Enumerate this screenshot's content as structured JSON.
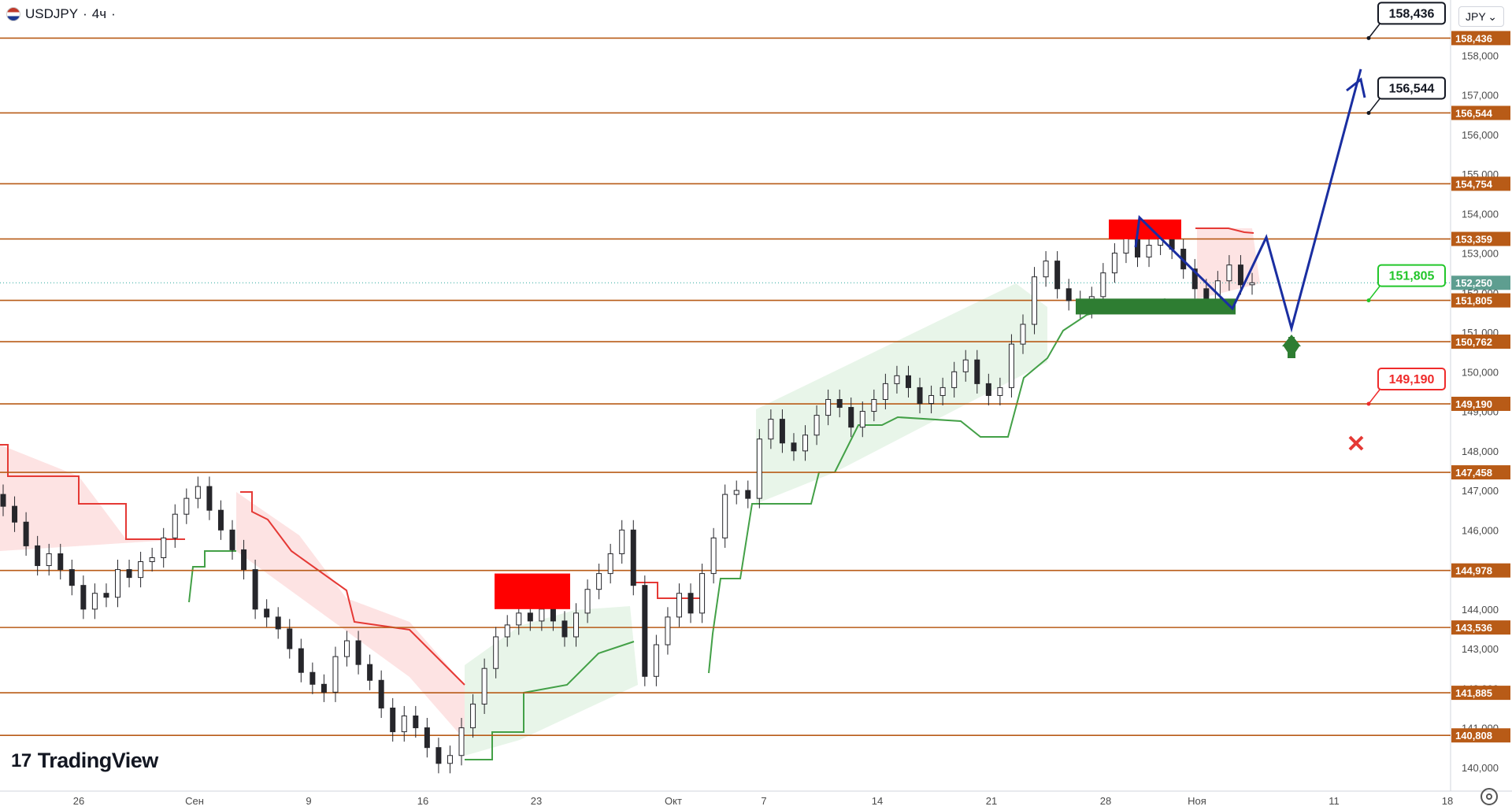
{
  "header": {
    "symbol": "USDJPY",
    "timeframe": "4ч",
    "currency": "JPY"
  },
  "branding": {
    "logo_text": "TradingView"
  },
  "colors": {
    "level_line": "#b85b17",
    "level_label_bg": "#b85b17",
    "bull": "#26a69a",
    "bear": "#ef5350",
    "candle": "#26262b",
    "path": "#1a2ea1",
    "up_zone": "#e8f5e9",
    "down_zone": "#fde3e3",
    "support_line": "#43a047",
    "resistance_line": "#e53935"
  },
  "chart_data": {
    "type": "candlestick",
    "title": "",
    "y_axis": {
      "min": 139.3,
      "max": 159.2,
      "ticks": [
        "158,000",
        "157,000",
        "156,000",
        "155,000",
        "154,000",
        "153,000",
        "152,000",
        "151,000",
        "150,000",
        "149,000",
        "148,000",
        "147,000",
        "146,000",
        "145,000",
        "144,000",
        "143,000",
        "142,000",
        "141,000",
        "140,000"
      ]
    },
    "x_axis": {
      "ticks": [
        "26",
        "Сен",
        "9",
        "16",
        "23",
        "Окт",
        "7",
        "14",
        "21",
        "28",
        "Ноя",
        "11",
        "18"
      ]
    },
    "current_price": {
      "value": 152.25,
      "label": "152,250"
    },
    "levels": [
      {
        "value": 158.436,
        "label": "158,436"
      },
      {
        "value": 156.544,
        "label": "156,544"
      },
      {
        "value": 154.754,
        "label": "154,754"
      },
      {
        "value": 153.359,
        "label": "153,359"
      },
      {
        "value": 151.805,
        "label": "151,805"
      },
      {
        "value": 150.762,
        "label": "150,762"
      },
      {
        "value": 149.19,
        "label": "149,190"
      },
      {
        "value": 147.458,
        "label": "147,458"
      },
      {
        "value": 144.978,
        "label": "144,978"
      },
      {
        "value": 143.536,
        "label": "143,536"
      },
      {
        "value": 141.885,
        "label": "141,885"
      },
      {
        "value": 140.808,
        "label": "140,808"
      }
    ],
    "targets": [
      {
        "value": 158.436,
        "label": "158,436",
        "style": "black"
      },
      {
        "value": 156.544,
        "label": "156,544",
        "style": "black"
      },
      {
        "value": 151.805,
        "label": "151,805",
        "style": "green"
      },
      {
        "value": 149.19,
        "label": "149,190",
        "style": "red"
      }
    ],
    "forecast_path": [
      {
        "date": "Oct 30",
        "price": 153.15
      },
      {
        "date": "Nov 5",
        "price": 151.6
      },
      {
        "date": "Nov 6",
        "price": 153.4
      },
      {
        "date": "Nov 8",
        "price": 151.1
      },
      {
        "date": "Nov 12",
        "price": 157.6
      }
    ],
    "close_series": [
      146.6,
      146.2,
      145.6,
      145.1,
      145.4,
      145.0,
      144.6,
      144.0,
      144.4,
      144.3,
      145.0,
      144.8,
      145.2,
      145.3,
      145.8,
      146.4,
      146.8,
      147.1,
      146.5,
      146.0,
      145.5,
      145.0,
      144.0,
      143.8,
      143.5,
      143.0,
      142.4,
      142.1,
      141.9,
      142.8,
      143.2,
      142.6,
      142.2,
      141.5,
      140.9,
      141.3,
      141.0,
      140.5,
      140.1,
      140.3,
      141.0,
      141.6,
      142.5,
      143.3,
      143.6,
      143.9,
      143.7,
      144.0,
      143.7,
      143.3,
      143.9,
      144.5,
      144.9,
      145.4,
      146.0,
      144.6,
      142.3,
      143.1,
      143.8,
      144.4,
      143.9,
      144.9,
      145.8,
      146.9,
      147.0,
      146.8,
      148.3,
      148.8,
      148.2,
      148.0,
      148.4,
      148.9,
      149.3,
      149.1,
      148.6,
      149.0,
      149.3,
      149.7,
      149.9,
      149.6,
      149.2,
      149.4,
      149.6,
      150.0,
      150.3,
      149.7,
      149.4,
      149.6,
      150.7,
      151.2,
      152.4,
      152.8,
      152.1,
      151.8,
      151.6,
      151.9,
      152.5,
      153.0,
      153.4,
      152.9,
      153.2,
      153.4,
      153.1,
      152.6,
      152.1,
      151.8,
      152.3,
      152.7,
      152.2,
      152.25
    ]
  }
}
